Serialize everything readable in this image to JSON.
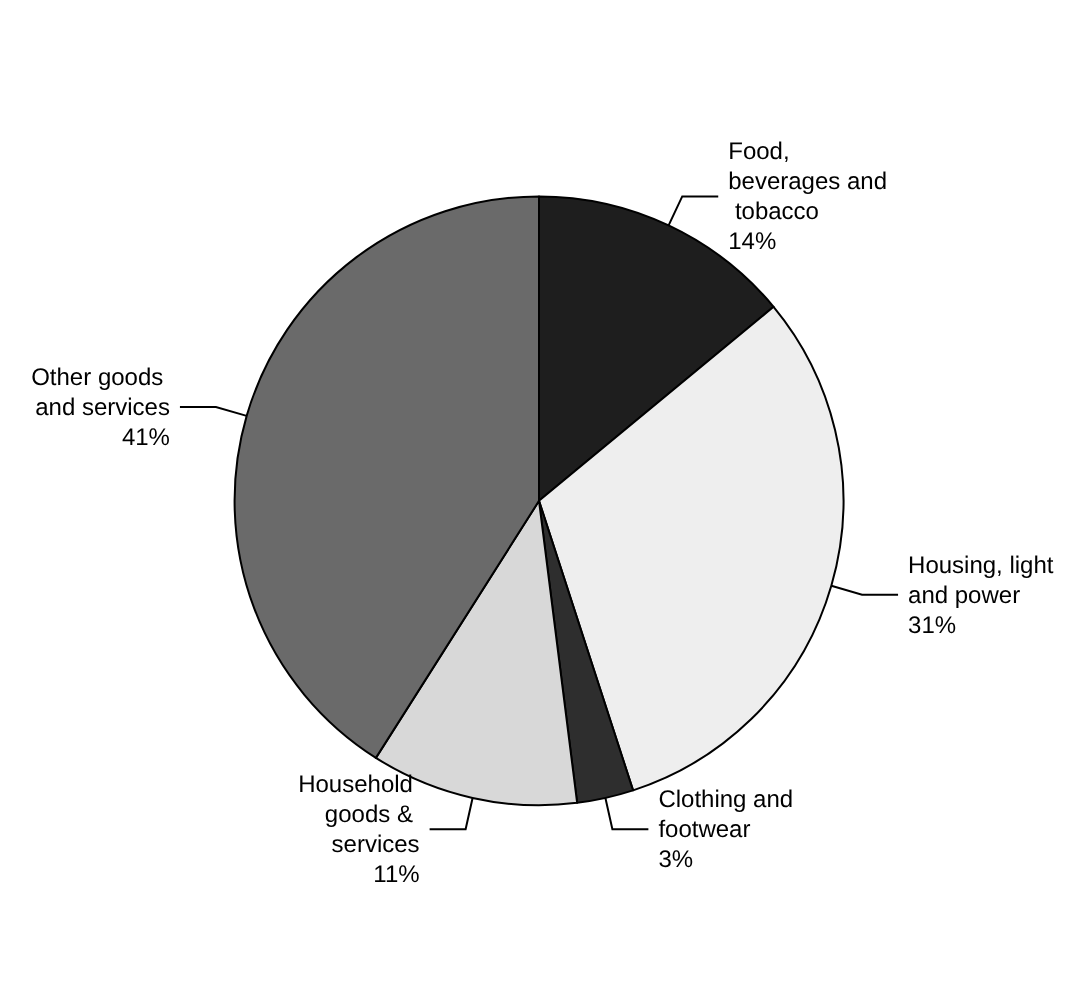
{
  "chart_data": {
    "type": "pie",
    "categories": [
      "Food, beverages and tobacco",
      "Housing, light and power",
      "Clothing and footwear",
      "Household goods & services",
      "Other goods and services"
    ],
    "values": [
      14,
      31,
      3,
      11,
      41
    ],
    "value_labels": [
      "14%",
      "31%",
      "3%",
      "11%",
      "41%"
    ],
    "colors": [
      "#1e1e1e",
      "#eeeeee",
      "#2e2e2e",
      "#d8d8d8",
      "#6a6a6a"
    ],
    "legend": false
  }
}
